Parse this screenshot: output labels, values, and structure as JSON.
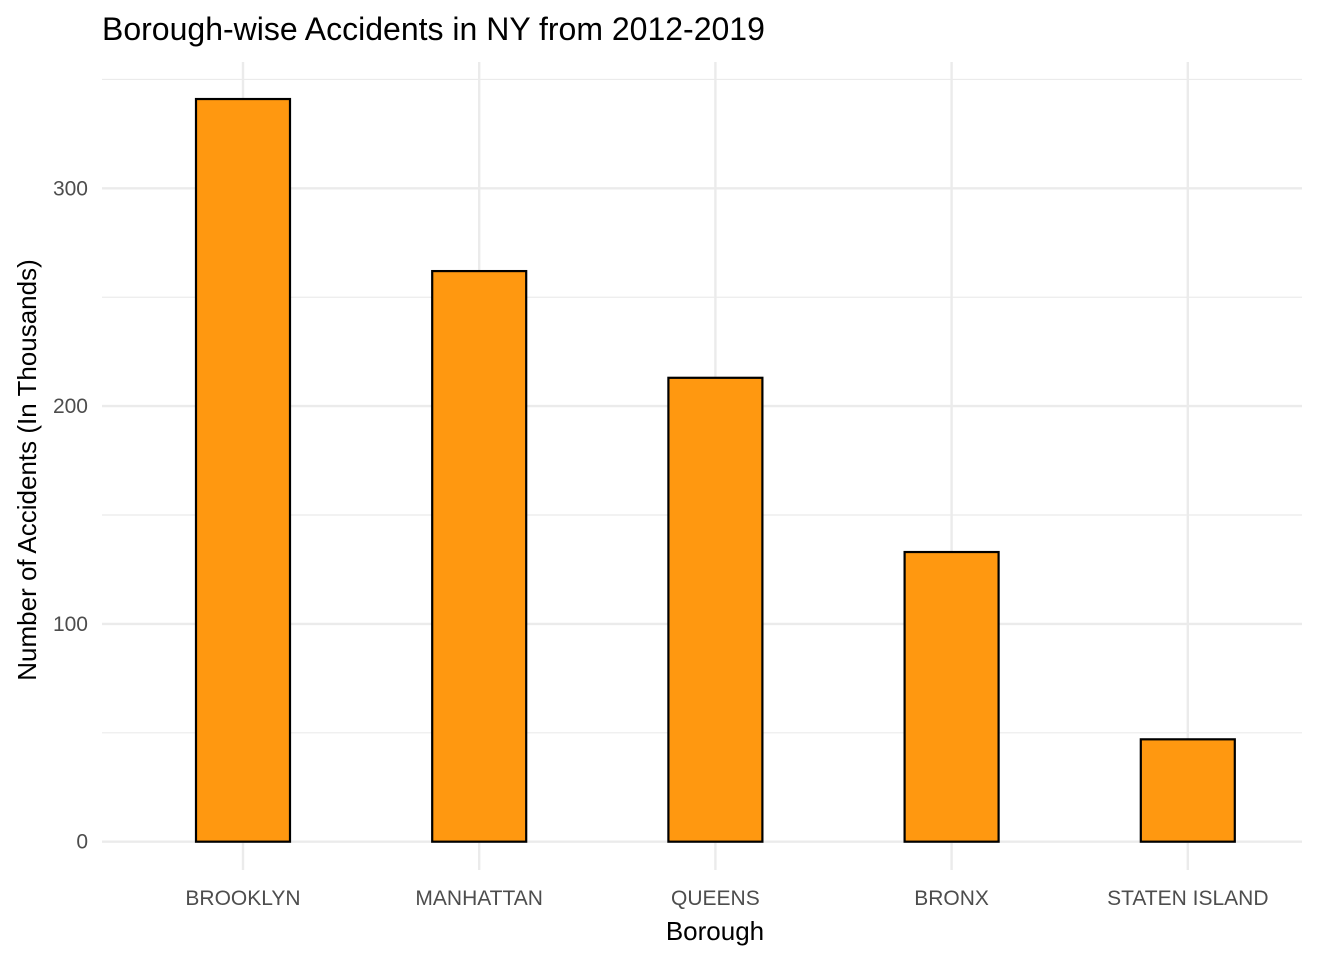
{
  "chart_data": {
    "type": "bar",
    "title": "Borough-wise Accidents in NY from 2012-2019",
    "xlabel": "Borough",
    "ylabel": "Number of Accidents (In Thousands)",
    "categories": [
      "BROOKLYN",
      "MANHATTAN",
      "QUEENS",
      "BRONX",
      "STATEN ISLAND"
    ],
    "values": [
      341,
      262,
      213,
      133,
      47
    ],
    "ylim": [
      -13,
      358
    ],
    "yticks": [
      0,
      100,
      200,
      300
    ],
    "ytick_labels": [
      "0",
      "100",
      "200",
      "300"
    ],
    "grid": true,
    "legend": "none",
    "bar_fill": "#FF9810",
    "bar_outline": "#000000",
    "grid_color": "#EBEBEB"
  }
}
